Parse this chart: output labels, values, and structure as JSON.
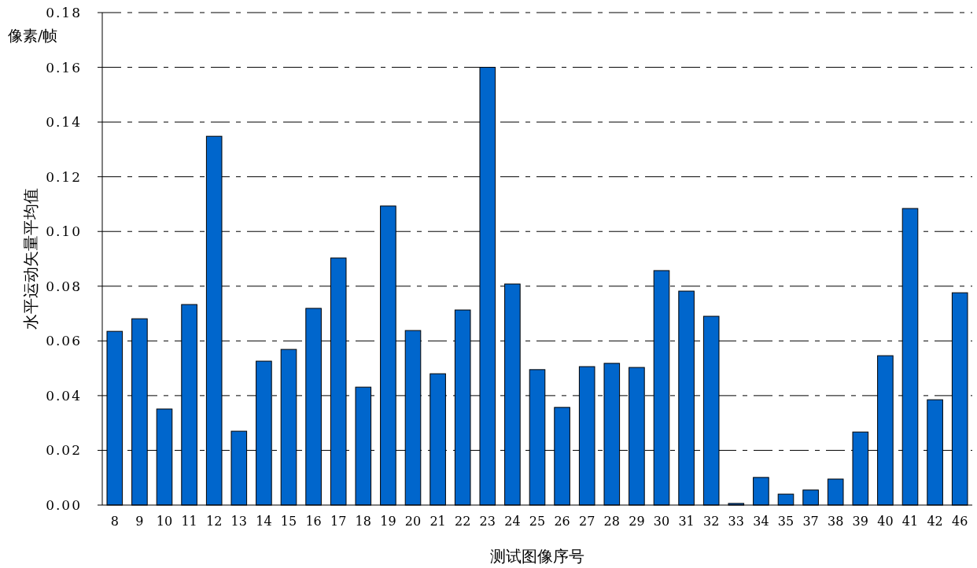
{
  "chart_data": {
    "type": "bar",
    "xlabel": "测试图像序号",
    "ylabel": "水平运动矢量平均值",
    "annotations": [
      "像素/帧"
    ],
    "categories": [
      "8",
      "9",
      "10",
      "11",
      "12",
      "13",
      "14",
      "15",
      "16",
      "17",
      "18",
      "19",
      "20",
      "21",
      "22",
      "23",
      "24",
      "25",
      "26",
      "27",
      "28",
      "29",
      "30",
      "31",
      "32",
      "33",
      "34",
      "35",
      "37",
      "38",
      "39",
      "40",
      "41",
      "42",
      "46"
    ],
    "values": [
      0.0635,
      0.0681,
      0.0351,
      0.0733,
      0.1348,
      0.027,
      0.0526,
      0.0569,
      0.0719,
      0.0903,
      0.0431,
      0.1093,
      0.0638,
      0.048,
      0.0713,
      0.16,
      0.0808,
      0.0495,
      0.0357,
      0.0506,
      0.0518,
      0.0503,
      0.0857,
      0.0782,
      0.069,
      0.0006,
      0.0101,
      0.004,
      0.0055,
      0.0095,
      0.0267,
      0.0546,
      0.1084,
      0.0385,
      0.0776
    ],
    "color": "#0066cc",
    "ylim": [
      0,
      0.18
    ],
    "yticks": [
      {
        "value": 0,
        "label": "0.00"
      },
      {
        "value": 0.02,
        "label": "0.02"
      },
      {
        "value": 0.04,
        "label": "0.04"
      },
      {
        "value": 0.06,
        "label": "0.06"
      },
      {
        "value": 0.08,
        "label": "0.08"
      },
      {
        "value": 0.1,
        "label": "0.10"
      },
      {
        "value": 0.12,
        "label": "0.12"
      },
      {
        "value": 0.14,
        "label": "0.14"
      },
      {
        "value": 0.16,
        "label": "0.16"
      },
      {
        "value": 0.18,
        "label": "0.18"
      }
    ],
    "grid": "y"
  }
}
